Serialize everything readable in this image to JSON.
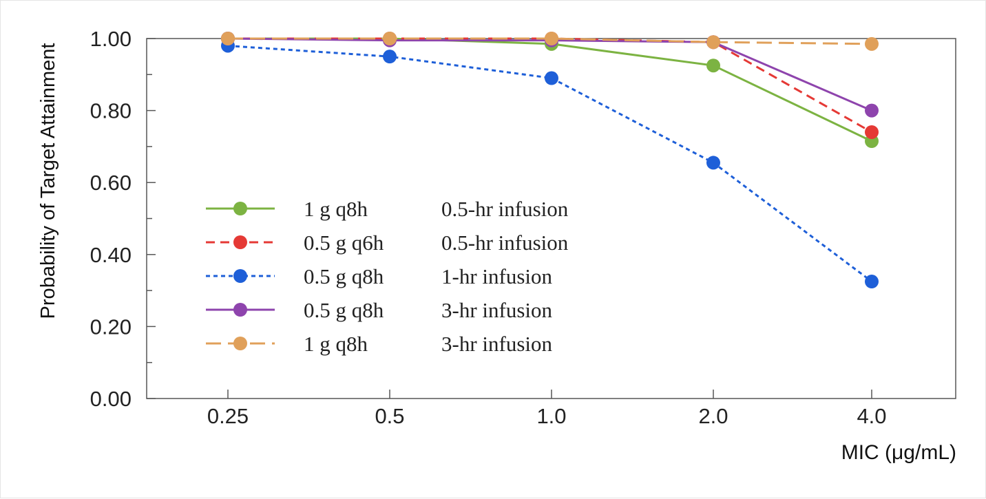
{
  "chart_data": {
    "type": "line",
    "xlabel": "MIC (μg/mL)",
    "ylabel": "Probability of Target Attainment",
    "categories": [
      "0.25",
      "0.5",
      "1.0",
      "2.0",
      "4.0"
    ],
    "y_ticks": [
      "0.00",
      "0.20",
      "0.40",
      "0.60",
      "0.80",
      "1.00"
    ],
    "ylim": [
      0,
      1
    ],
    "grid": false,
    "legend_position": "center-left",
    "series": [
      {
        "name": "1 g q8h",
        "infusion": "0.5-hr infusion",
        "color": "#7cb342",
        "dash": "solid",
        "values": [
          1.0,
          1.0,
          0.985,
          0.925,
          0.715
        ]
      },
      {
        "name": "0.5 g q6h",
        "infusion": "0.5-hr infusion",
        "color": "#e53935",
        "dash": "dashed",
        "values": [
          1.0,
          1.0,
          1.0,
          0.99,
          0.74
        ]
      },
      {
        "name": "0.5 g q8h",
        "infusion": "1-hr infusion",
        "color": "#1e5fd8",
        "dash": "dotted",
        "values": [
          0.98,
          0.95,
          0.89,
          0.655,
          0.325
        ]
      },
      {
        "name": "0.5 g q8h",
        "infusion": "3-hr infusion",
        "color": "#8e44ad",
        "dash": "solid",
        "values": [
          1.0,
          0.995,
          0.995,
          0.99,
          0.8
        ]
      },
      {
        "name": "1 g q8h",
        "infusion": "3-hr infusion",
        "color": "#e0a05a",
        "dash": "longdash",
        "values": [
          1.0,
          1.0,
          1.0,
          0.99,
          0.985
        ]
      }
    ]
  }
}
